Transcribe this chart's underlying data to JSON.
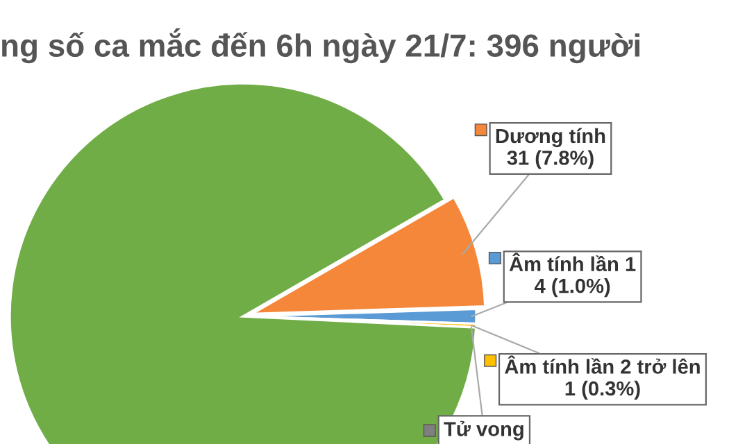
{
  "chart_data": {
    "type": "pie",
    "title": "ng số ca mắc đến 6h ngày 21/7: 396 người",
    "categories": [
      "Dương tính",
      "Âm tính lần 1",
      "Âm tính lần 2 trở lên",
      "Tử vong",
      null
    ],
    "values": [
      31,
      4,
      1,
      0,
      360
    ],
    "value_labels": [
      "31 (7.8%)",
      "4 (1.0%)",
      "1 (0.3%)",
      null,
      null
    ],
    "colors": [
      "#f5873a",
      "#5b9bd5",
      "#ffc000",
      "#7f7f7f",
      "#70ad47"
    ],
    "legend": "right"
  }
}
